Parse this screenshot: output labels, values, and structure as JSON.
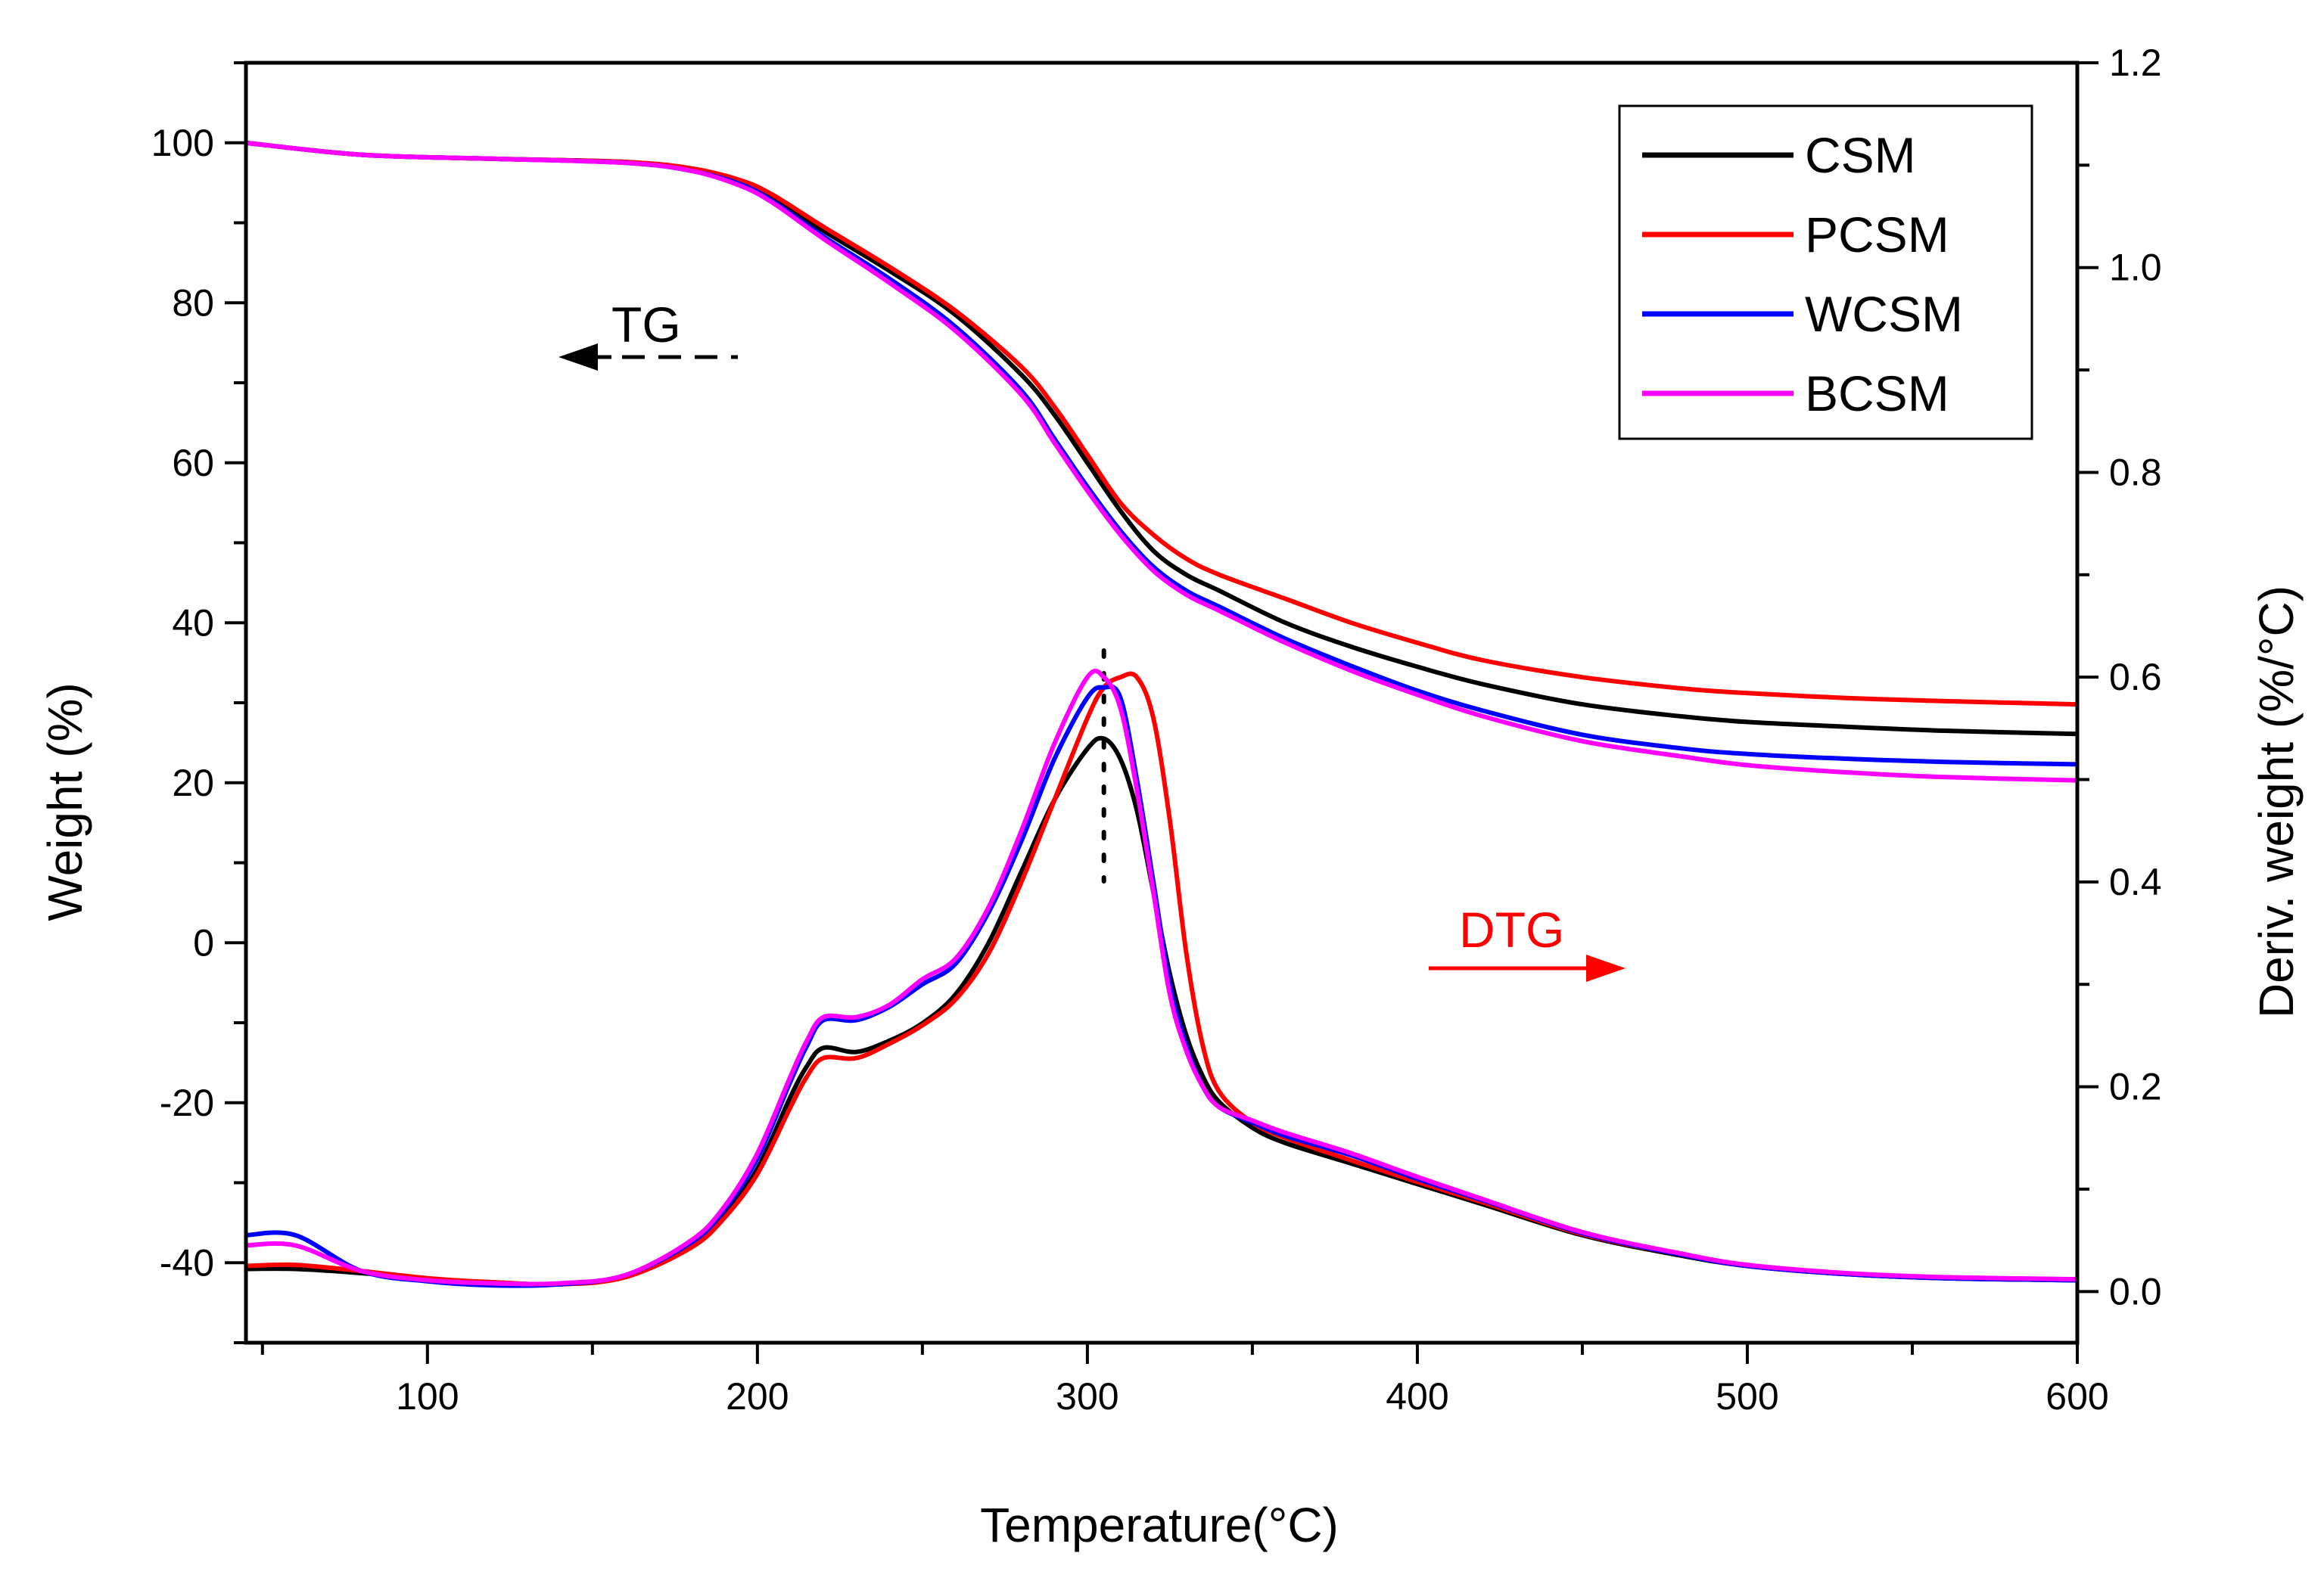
{
  "chart_data": {
    "type": "line",
    "title": "",
    "xlabel": "Temperature(°C)",
    "ylabel_left": "Weight (%)",
    "ylabel_right": "Deriv. weight (%/°C)",
    "xlim": [
      45,
      600
    ],
    "ylim_left": [
      -50,
      110
    ],
    "ylim_right": [
      -0.05,
      1.2
    ],
    "xticks": [
      100,
      200,
      300,
      400,
      500,
      600
    ],
    "xtick_labels": [
      "100",
      "200",
      "300",
      "400",
      "500",
      "600"
    ],
    "yticks_left": [
      -40,
      -20,
      0,
      20,
      40,
      60,
      80,
      100
    ],
    "ytick_labels_left": [
      "-40",
      "-20",
      "0",
      "20",
      "40",
      "60",
      "80",
      "100"
    ],
    "yticks_right": [
      0.0,
      0.2,
      0.4,
      0.6,
      0.8,
      1.0,
      1.2
    ],
    "ytick_labels_right": [
      "0.0",
      "0.2",
      "0.4",
      "0.6",
      "0.8",
      "1.0",
      "1.2"
    ],
    "grid": false,
    "legend_position": "top-right",
    "annotations": {
      "tg": {
        "text": "TG",
        "color": "#000000",
        "arrow": "left"
      },
      "dtg": {
        "text": "DTG",
        "color": "#ff0000",
        "arrow": "right"
      },
      "peak_marker_x": 305
    },
    "series": [
      {
        "name": "CSM",
        "color": "#000000",
        "tg": {
          "x": [
            45,
            80,
            120,
            160,
            180,
            195,
            205,
            220,
            240,
            260,
            280,
            290,
            300,
            310,
            320,
            330,
            340,
            360,
            380,
            400,
            420,
            450,
            480,
            500,
            530,
            560,
            600
          ],
          "y": [
            100,
            98.5,
            98,
            97.6,
            96.6,
            95,
            93,
            89,
            84,
            78.5,
            71,
            66,
            60,
            54,
            49,
            46,
            44,
            40,
            37,
            34.5,
            32.3,
            29.8,
            28.3,
            27.6,
            27,
            26.5,
            26.1
          ]
        },
        "dtg": {
          "x": [
            45,
            60,
            80,
            100,
            120,
            140,
            160,
            180,
            190,
            200,
            210,
            215,
            220,
            230,
            240,
            250,
            260,
            270,
            280,
            290,
            300,
            305,
            310,
            315,
            320,
            325,
            330,
            335,
            340,
            350,
            360,
            380,
            400,
            420,
            450,
            480,
            500,
            530,
            560,
            600
          ],
          "y": [
            0.022,
            0.022,
            0.018,
            0.012,
            0.009,
            0.007,
            0.015,
            0.045,
            0.075,
            0.12,
            0.19,
            0.22,
            0.238,
            0.234,
            0.245,
            0.262,
            0.29,
            0.34,
            0.41,
            0.48,
            0.53,
            0.54,
            0.52,
            0.47,
            0.39,
            0.31,
            0.25,
            0.21,
            0.185,
            0.16,
            0.145,
            0.125,
            0.105,
            0.085,
            0.055,
            0.035,
            0.025,
            0.017,
            0.013,
            0.011
          ]
        }
      },
      {
        "name": "PCSM",
        "color": "#ff0000",
        "tg": {
          "x": [
            45,
            80,
            120,
            160,
            180,
            195,
            205,
            220,
            240,
            260,
            280,
            290,
            300,
            310,
            320,
            330,
            340,
            360,
            380,
            400,
            420,
            450,
            480,
            500,
            530,
            560,
            600
          ],
          "y": [
            100,
            98.5,
            98,
            97.6,
            96.8,
            95.3,
            93.4,
            89.5,
            84.5,
            79,
            72,
            67,
            61,
            55,
            51,
            48,
            46,
            43,
            40,
            37.5,
            35.3,
            33.2,
            31.8,
            31.2,
            30.6,
            30.2,
            29.8
          ]
        },
        "dtg": {
          "x": [
            45,
            60,
            80,
            100,
            120,
            140,
            160,
            180,
            190,
            200,
            210,
            215,
            220,
            230,
            240,
            250,
            260,
            270,
            280,
            290,
            300,
            305,
            310,
            315,
            320,
            325,
            330,
            335,
            340,
            350,
            360,
            380,
            400,
            420,
            450,
            480,
            500,
            530,
            560,
            600
          ],
          "y": [
            0.025,
            0.026,
            0.02,
            0.013,
            0.009,
            0.007,
            0.014,
            0.043,
            0.072,
            0.115,
            0.18,
            0.21,
            0.228,
            0.228,
            0.242,
            0.26,
            0.285,
            0.33,
            0.4,
            0.48,
            0.56,
            0.59,
            0.6,
            0.6,
            0.56,
            0.46,
            0.33,
            0.24,
            0.195,
            0.165,
            0.15,
            0.128,
            0.107,
            0.087,
            0.056,
            0.036,
            0.025,
            0.017,
            0.013,
            0.012
          ]
        }
      },
      {
        "name": "WCSM",
        "color": "#0000ff",
        "tg": {
          "x": [
            45,
            80,
            120,
            160,
            180,
            195,
            205,
            220,
            240,
            260,
            280,
            290,
            300,
            310,
            320,
            330,
            340,
            360,
            380,
            400,
            420,
            450,
            480,
            500,
            530,
            560,
            600
          ],
          "y": [
            100,
            98.5,
            98,
            97.5,
            96.5,
            94.8,
            92.6,
            88.3,
            83,
            77,
            69,
            63,
            57,
            51.5,
            47,
            44,
            42,
            38,
            34.6,
            31.5,
            29,
            26,
            24.3,
            23.6,
            23,
            22.6,
            22.3
          ]
        },
        "dtg": {
          "x": [
            45,
            60,
            80,
            100,
            120,
            140,
            160,
            180,
            190,
            200,
            210,
            215,
            220,
            230,
            240,
            250,
            260,
            270,
            280,
            290,
            300,
            305,
            310,
            315,
            320,
            325,
            330,
            335,
            340,
            350,
            360,
            380,
            400,
            420,
            450,
            480,
            500,
            530,
            560,
            600
          ],
          "y": [
            0.055,
            0.055,
            0.02,
            0.01,
            0.006,
            0.007,
            0.016,
            0.048,
            0.08,
            0.13,
            0.205,
            0.24,
            0.265,
            0.265,
            0.278,
            0.3,
            0.32,
            0.37,
            0.44,
            0.52,
            0.58,
            0.59,
            0.58,
            0.5,
            0.4,
            0.3,
            0.24,
            0.2,
            0.18,
            0.165,
            0.152,
            0.133,
            0.11,
            0.089,
            0.057,
            0.036,
            0.025,
            0.017,
            0.013,
            0.011
          ]
        }
      },
      {
        "name": "BCSM",
        "color": "#ff00ff",
        "tg": {
          "x": [
            45,
            80,
            120,
            160,
            180,
            195,
            205,
            220,
            240,
            260,
            280,
            290,
            300,
            310,
            320,
            330,
            340,
            360,
            380,
            400,
            420,
            450,
            480,
            500,
            530,
            560,
            600
          ],
          "y": [
            100,
            98.5,
            98,
            97.5,
            96.5,
            94.6,
            92.4,
            88,
            82.5,
            76.5,
            68.5,
            62.5,
            56.5,
            51,
            46.5,
            43.5,
            41.5,
            37.5,
            34,
            31,
            28.3,
            25.2,
            23.3,
            22.2,
            21.3,
            20.7,
            20.3
          ]
        },
        "dtg": {
          "x": [
            45,
            60,
            80,
            100,
            120,
            140,
            160,
            180,
            190,
            200,
            210,
            215,
            220,
            230,
            240,
            250,
            260,
            270,
            280,
            290,
            300,
            305,
            310,
            315,
            320,
            325,
            330,
            335,
            340,
            350,
            360,
            380,
            400,
            420,
            450,
            480,
            500,
            530,
            560,
            600
          ],
          "y": [
            0.045,
            0.045,
            0.02,
            0.011,
            0.008,
            0.008,
            0.016,
            0.05,
            0.083,
            0.135,
            0.21,
            0.245,
            0.268,
            0.268,
            0.28,
            0.305,
            0.325,
            0.375,
            0.45,
            0.535,
            0.6,
            0.6,
            0.57,
            0.49,
            0.39,
            0.29,
            0.235,
            0.2,
            0.18,
            0.167,
            0.155,
            0.135,
            0.112,
            0.09,
            0.058,
            0.037,
            0.026,
            0.018,
            0.014,
            0.012
          ]
        }
      }
    ]
  }
}
